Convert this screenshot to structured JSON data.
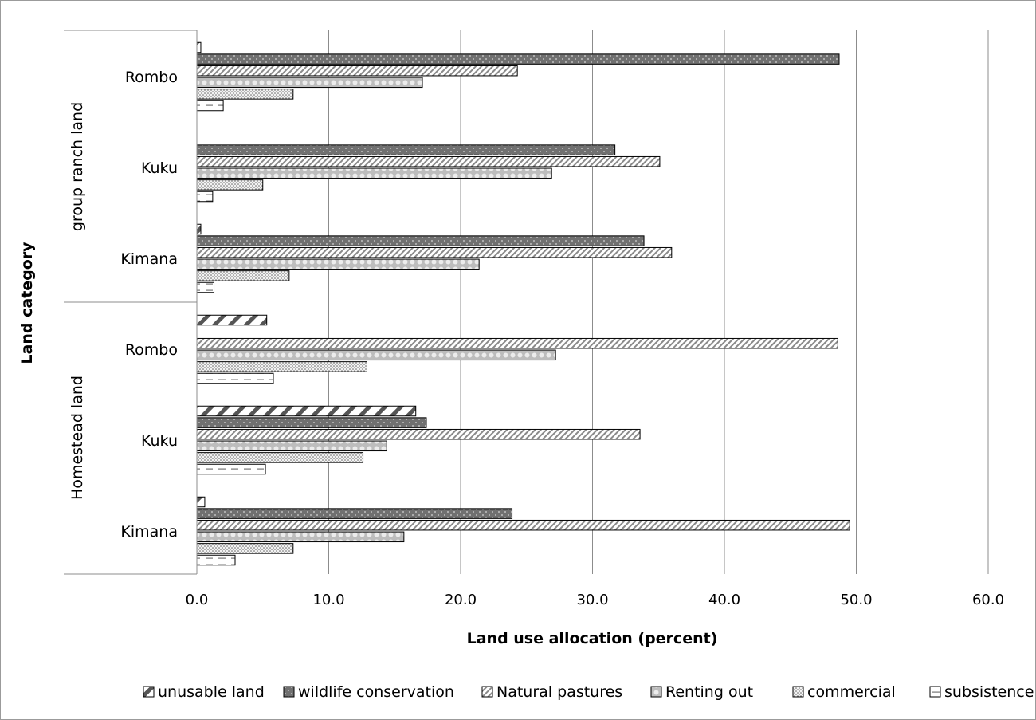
{
  "chart_data": {
    "type": "bar",
    "orientation": "horizontal",
    "xlabel": "Land use allocation (percent)",
    "ylabel": "Land category",
    "xlim": [
      0,
      60
    ],
    "xticks": [
      "0.0",
      "10.0",
      "20.0",
      "30.0",
      "40.0",
      "50.0",
      "60.0"
    ],
    "grid": true,
    "legend_position": "bottom",
    "groups": [
      {
        "label": "group ranch land",
        "categories": [
          "Rombo",
          "Kuku",
          "Kimana"
        ]
      },
      {
        "label": "Homestead land",
        "categories": [
          "Rombo",
          "Kuku",
          "Kimana"
        ]
      }
    ],
    "series": [
      {
        "name": "unusable land",
        "pattern": "diag-wide",
        "values": [
          0.3,
          0.0,
          0.3,
          5.3,
          16.6,
          0.6
        ]
      },
      {
        "name": "wildlife conservation",
        "pattern": "dots-dark",
        "values": [
          48.7,
          31.7,
          33.9,
          0.0,
          17.4,
          23.9
        ]
      },
      {
        "name": "Natural pastures",
        "pattern": "diag-fine",
        "values": [
          24.3,
          35.1,
          36.0,
          48.6,
          33.6,
          49.5
        ]
      },
      {
        "name": "Renting out",
        "pattern": "circles",
        "values": [
          17.1,
          26.9,
          21.4,
          27.2,
          14.4,
          15.7
        ]
      },
      {
        "name": "commercial",
        "pattern": "dots-light",
        "values": [
          7.3,
          5.0,
          7.0,
          12.9,
          12.6,
          7.3
        ]
      },
      {
        "name": "subsistence",
        "pattern": "dashes",
        "values": [
          2.0,
          1.2,
          1.3,
          5.8,
          5.2,
          2.9
        ]
      }
    ]
  }
}
